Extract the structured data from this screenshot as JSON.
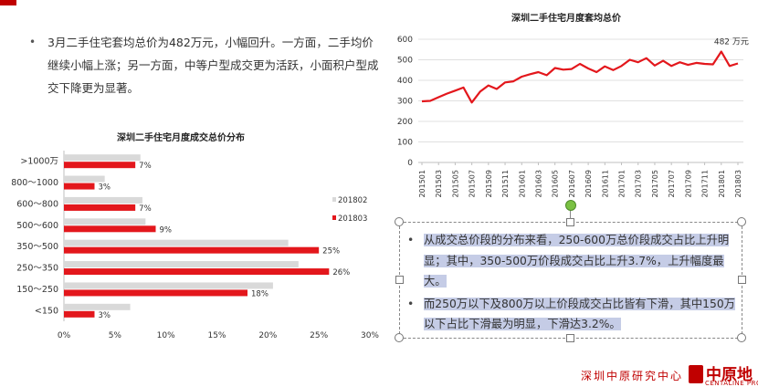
{
  "bullet": {
    "symbol": "•",
    "text": "3月二手住宅套均总价为482万元，小幅回升。一方面，二手均价继续小幅上涨；另一方面，中等户型成交更为活跃，小面积户型成交下降更为显著。"
  },
  "selected_box": {
    "items": [
      {
        "symbol": "•",
        "text": "从成交总价段的分布来看，250-600万总价段成交占比上升明显；其中，350-500万价段成交占比上升3.7%，上升幅度最大。"
      },
      {
        "symbol": "•",
        "text": "而250万以下及800万以上价段成交占比皆有下滑，其中150万以下占比下滑最为明显，下滑达3.2%。"
      }
    ]
  },
  "footer": {
    "text": "深圳中原研究中心",
    "logo_text": "中原地",
    "logo_sub": "CENTALINE PROP"
  },
  "colors": {
    "red": "#e3171c",
    "gray": "#d9d9d9",
    "brand": "#c00000"
  },
  "chart_data": [
    {
      "type": "bar",
      "orientation": "horizontal",
      "title": "深圳二手住宅月度成交总价分布",
      "categories": [
        ">1000万",
        "800～1000",
        "600～800",
        "500～600",
        "350～500",
        "250～350",
        "150～250",
        "<150"
      ],
      "series": [
        {
          "name": "201802",
          "color": "#d9d9d9",
          "values": [
            7.5,
            4,
            7.7,
            8,
            22,
            23,
            20.5,
            6.5
          ]
        },
        {
          "name": "201803",
          "color": "#e3171c",
          "values": [
            7,
            3,
            7,
            9,
            25,
            26,
            18,
            3
          ]
        }
      ],
      "data_labels": [
        "7%",
        "3%",
        "7%",
        "9%",
        "25%",
        "26%",
        "18%",
        "3%"
      ],
      "xlim": [
        0,
        30
      ],
      "xticks": [
        "0%",
        "5%",
        "10%",
        "15%",
        "20%",
        "25%",
        "30%"
      ],
      "legend": "right"
    },
    {
      "type": "line",
      "title": "深圳二手住宅月度套均总价",
      "x": [
        "201501",
        "201502",
        "201503",
        "201504",
        "201505",
        "201506",
        "201507",
        "201508",
        "201509",
        "201510",
        "201511",
        "201512",
        "201601",
        "201602",
        "201603",
        "201604",
        "201605",
        "201606",
        "201607",
        "201608",
        "201609",
        "201610",
        "201611",
        "201612",
        "201701",
        "201702",
        "201703",
        "201704",
        "201705",
        "201706",
        "201707",
        "201708",
        "201709",
        "201710",
        "201711",
        "201712",
        "201801",
        "201802",
        "201803"
      ],
      "xtick_labels": [
        "201501",
        "201503",
        "201505",
        "201507",
        "201509",
        "201511",
        "201601",
        "201603",
        "201605",
        "201607",
        "201609",
        "201611",
        "201701",
        "201703",
        "201705",
        "201707",
        "201709",
        "201711",
        "201801",
        "201803"
      ],
      "values": [
        298,
        300,
        318,
        335,
        350,
        365,
        292,
        345,
        375,
        358,
        390,
        395,
        418,
        430,
        440,
        425,
        460,
        452,
        455,
        480,
        458,
        440,
        468,
        450,
        470,
        500,
        488,
        508,
        472,
        495,
        470,
        488,
        475,
        485,
        480,
        478,
        540,
        470,
        482
      ],
      "annotation": "482 万元",
      "color": "#e3171c",
      "ylim": [
        0,
        600
      ],
      "yticks": [
        0,
        100,
        200,
        300,
        400,
        500,
        600
      ]
    }
  ]
}
